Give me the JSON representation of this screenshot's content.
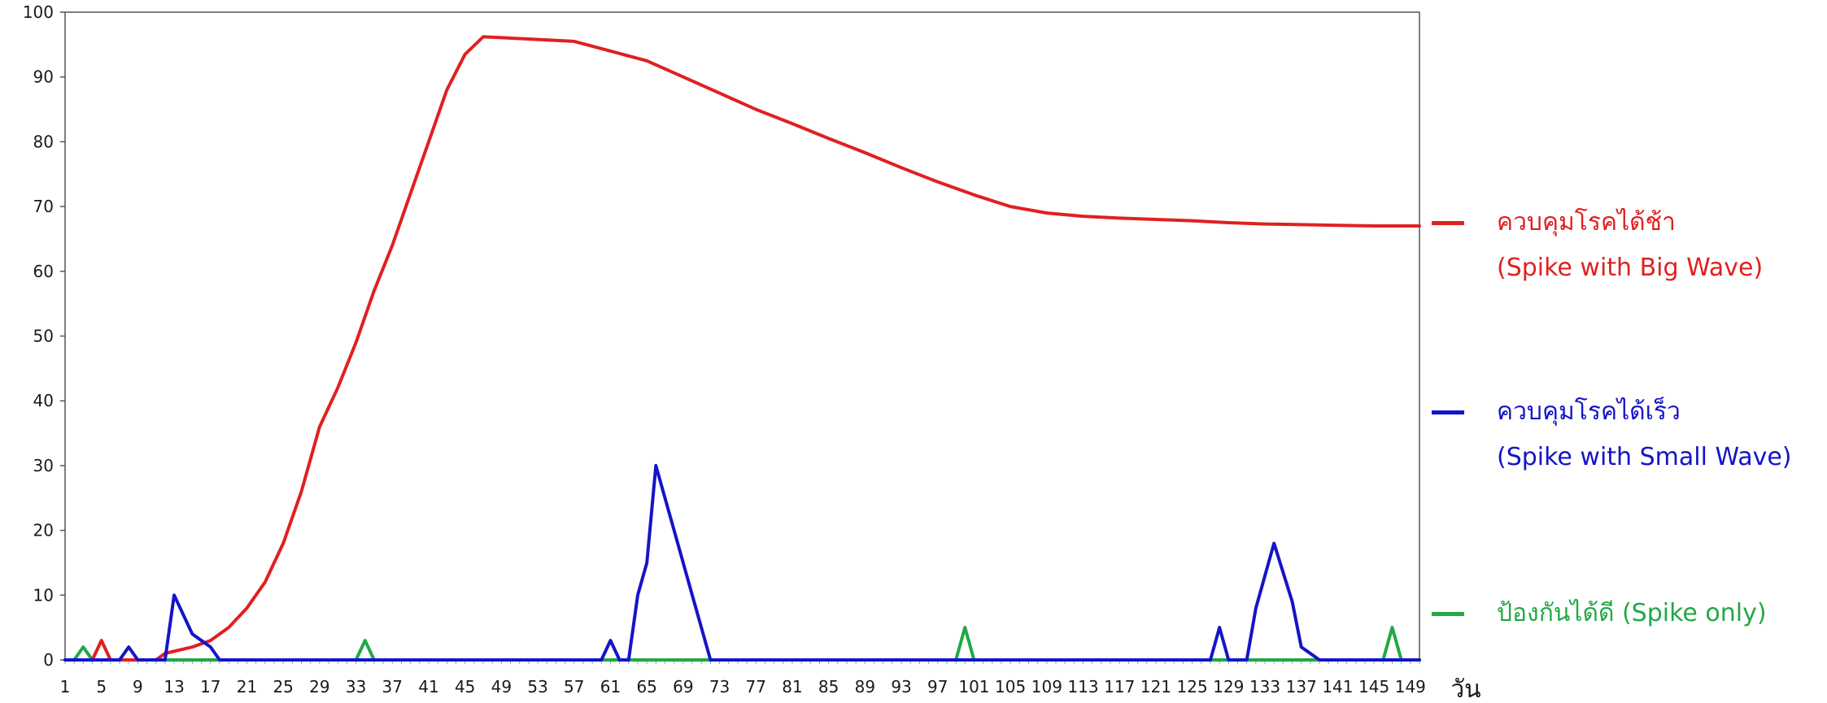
{
  "chart_data": {
    "type": "line",
    "title": "",
    "xlabel": "วัน",
    "ylabel": "",
    "ylim": [
      0,
      100
    ],
    "xlim": [
      1,
      150
    ],
    "y_ticks": [
      0,
      10,
      20,
      30,
      40,
      50,
      60,
      70,
      80,
      90,
      100
    ],
    "x_tick_labels": [
      "1",
      "5",
      "9",
      "13",
      "17",
      "21",
      "25",
      "29",
      "33",
      "37",
      "41",
      "45",
      "49",
      "53",
      "57",
      "61",
      "65",
      "69",
      "73",
      "77",
      "81",
      "85",
      "89",
      "93",
      "97",
      "101",
      "105",
      "109",
      "113",
      "117",
      "121",
      "125",
      "129",
      "133",
      "137",
      "141",
      "145",
      "149"
    ],
    "grid": false,
    "legend_position": "right",
    "series": [
      {
        "name": "ควบคุมโรคได้ช้า",
        "subtitle": "(Spike with Big Wave)",
        "color": "#e02020",
        "points": [
          [
            1,
            0
          ],
          [
            4,
            0
          ],
          [
            5,
            3
          ],
          [
            6,
            0
          ],
          [
            11,
            0
          ],
          [
            12,
            1
          ],
          [
            15,
            2
          ],
          [
            17,
            3
          ],
          [
            19,
            5
          ],
          [
            21,
            8
          ],
          [
            23,
            12
          ],
          [
            25,
            18
          ],
          [
            27,
            26
          ],
          [
            29,
            36
          ],
          [
            31,
            42
          ],
          [
            33,
            49
          ],
          [
            35,
            57
          ],
          [
            37,
            64
          ],
          [
            39,
            72
          ],
          [
            41,
            80
          ],
          [
            43,
            88
          ],
          [
            45,
            93.5
          ],
          [
            47,
            96.2
          ],
          [
            50,
            96
          ],
          [
            57,
            95.5
          ],
          [
            61,
            94
          ],
          [
            65,
            92.5
          ],
          [
            69,
            90
          ],
          [
            73,
            87.5
          ],
          [
            77,
            85
          ],
          [
            81,
            82.8
          ],
          [
            85,
            80.5
          ],
          [
            89,
            78.3
          ],
          [
            93,
            76
          ],
          [
            97,
            73.8
          ],
          [
            101,
            71.8
          ],
          [
            105,
            70
          ],
          [
            109,
            69
          ],
          [
            113,
            68.5
          ],
          [
            117,
            68.2
          ],
          [
            121,
            68
          ],
          [
            125,
            67.8
          ],
          [
            129,
            67.5
          ],
          [
            133,
            67.3
          ],
          [
            137,
            67.2
          ],
          [
            141,
            67.1
          ],
          [
            145,
            67
          ],
          [
            150,
            67
          ]
        ]
      },
      {
        "name": "ควบคุมโรคได้เร็ว",
        "subtitle": "(Spike with Small Wave)",
        "color": "#1414c8",
        "points": [
          [
            1,
            0
          ],
          [
            7,
            0
          ],
          [
            8,
            2
          ],
          [
            9,
            0
          ],
          [
            12,
            0
          ],
          [
            13,
            10
          ],
          [
            15,
            4
          ],
          [
            17,
            2
          ],
          [
            18,
            0
          ],
          [
            60,
            0
          ],
          [
            61,
            3
          ],
          [
            62,
            0
          ],
          [
            63,
            0
          ],
          [
            64,
            10
          ],
          [
            65,
            15
          ],
          [
            66,
            30
          ],
          [
            68,
            20
          ],
          [
            70,
            10
          ],
          [
            72,
            0
          ],
          [
            127,
            0
          ],
          [
            128,
            5
          ],
          [
            129,
            0
          ],
          [
            131,
            0
          ],
          [
            132,
            8
          ],
          [
            134,
            18
          ],
          [
            136,
            9
          ],
          [
            137,
            2
          ],
          [
            139,
            0
          ],
          [
            150,
            0
          ]
        ]
      },
      {
        "name": "ป้องกันได้ดี (Spike only)",
        "subtitle": "",
        "color": "#22a845",
        "points": [
          [
            1,
            0
          ],
          [
            2,
            0
          ],
          [
            3,
            2
          ],
          [
            4,
            0
          ],
          [
            33,
            0
          ],
          [
            34,
            3
          ],
          [
            35,
            0
          ],
          [
            99,
            0
          ],
          [
            100,
            5
          ],
          [
            101,
            0
          ],
          [
            146,
            0
          ],
          [
            147,
            5
          ],
          [
            148,
            0
          ],
          [
            150,
            0
          ]
        ]
      }
    ]
  }
}
